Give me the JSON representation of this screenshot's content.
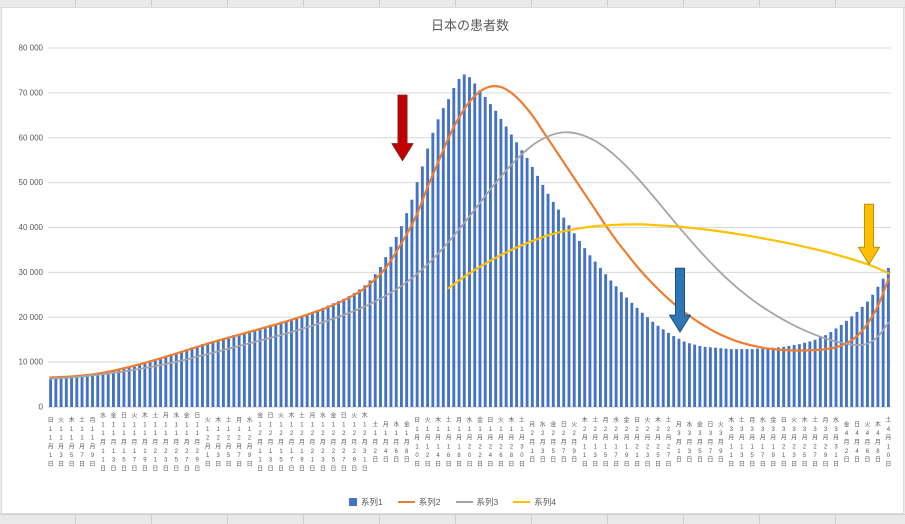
{
  "chart_data": {
    "type": "combo-bar-line",
    "title": "日本の患者数",
    "ylim": [
      0,
      80000
    ],
    "ytick_step": 10000,
    "ytick_labels": [
      "0",
      "10 000",
      "20 000",
      "30 000",
      "40 000",
      "50 000",
      "60 000",
      "70 000",
      "80 000"
    ],
    "grid": true,
    "legend_position": "bottom",
    "days_total": 161,
    "x_label_day_step": 2,
    "x_label_suffix_month": "月",
    "x_label_suffix_day": "日",
    "x_labels": [
      [
        "日",
        "11",
        "1"
      ],
      [
        "火",
        "11",
        "3"
      ],
      [
        "木",
        "11",
        "5"
      ],
      [
        "土",
        "11",
        "7"
      ],
      [
        "月",
        "11",
        "9"
      ],
      [
        "水",
        "11",
        "11"
      ],
      [
        "金",
        "11",
        "13"
      ],
      [
        "日",
        "11",
        "15"
      ],
      [
        "火",
        "11",
        "17"
      ],
      [
        "木",
        "11",
        "19"
      ],
      [
        "土",
        "11",
        "21"
      ],
      [
        "月",
        "11",
        "23"
      ],
      [
        "水",
        "11",
        "25"
      ],
      [
        "金",
        "11",
        "27"
      ],
      [
        "日",
        "11",
        "29"
      ],
      [
        "火",
        "12",
        "1"
      ],
      [
        "木",
        "12",
        "3"
      ],
      [
        "土",
        "12",
        "5"
      ],
      [
        "月",
        "12",
        "7"
      ],
      [
        "水",
        "12",
        "9"
      ],
      [
        "金",
        "12",
        "11"
      ],
      [
        "日",
        "12",
        "13"
      ],
      [
        "火",
        "12",
        "15"
      ],
      [
        "木",
        "12",
        "17"
      ],
      [
        "土",
        "12",
        "19"
      ],
      [
        "月",
        "12",
        "21"
      ],
      [
        "水",
        "12",
        "23"
      ],
      [
        "金",
        "12",
        "25"
      ],
      [
        "日",
        "12",
        "27"
      ],
      [
        "火",
        "12",
        "29"
      ],
      [
        "木",
        "12",
        "31"
      ],
      [
        "土",
        "1",
        "2"
      ],
      [
        "月",
        "1",
        "4"
      ],
      [
        "水",
        "1",
        "6"
      ],
      [
        "金",
        "1",
        "8"
      ],
      [
        "日",
        "1",
        "10"
      ],
      [
        "火",
        "1",
        "12"
      ],
      [
        "木",
        "1",
        "14"
      ],
      [
        "土",
        "1",
        "16"
      ],
      [
        "月",
        "1",
        "18"
      ],
      [
        "水",
        "1",
        "20"
      ],
      [
        "金",
        "1",
        "22"
      ],
      [
        "日",
        "1",
        "24"
      ],
      [
        "火",
        "1",
        "26"
      ],
      [
        "木",
        "1",
        "28"
      ],
      [
        "土",
        "1",
        "30"
      ],
      [
        "月",
        "2",
        "1"
      ],
      [
        "水",
        "2",
        "3"
      ],
      [
        "金",
        "2",
        "5"
      ],
      [
        "日",
        "2",
        "7"
      ],
      [
        "火",
        "2",
        "9"
      ],
      [
        "木",
        "2",
        "11"
      ],
      [
        "土",
        "2",
        "13"
      ],
      [
        "月",
        "2",
        "15"
      ],
      [
        "水",
        "2",
        "17"
      ],
      [
        "金",
        "2",
        "19"
      ],
      [
        "日",
        "2",
        "21"
      ],
      [
        "火",
        "2",
        "23"
      ],
      [
        "木",
        "2",
        "25"
      ],
      [
        "土",
        "2",
        "27"
      ],
      [
        "月",
        "3",
        "1"
      ],
      [
        "水",
        "3",
        "3"
      ],
      [
        "金",
        "3",
        "5"
      ],
      [
        "日",
        "3",
        "7"
      ],
      [
        "火",
        "3",
        "9"
      ],
      [
        "木",
        "3",
        "11"
      ],
      [
        "土",
        "3",
        "13"
      ],
      [
        "月",
        "3",
        "15"
      ],
      [
        "水",
        "3",
        "17"
      ],
      [
        "金",
        "3",
        "19"
      ],
      [
        "日",
        "3",
        "21"
      ],
      [
        "火",
        "3",
        "23"
      ],
      [
        "木",
        "3",
        "25"
      ],
      [
        "土",
        "3",
        "27"
      ],
      [
        "月",
        "3",
        "29"
      ],
      [
        "水",
        "3",
        "31"
      ],
      [
        "金",
        "4",
        "2"
      ],
      [
        "日",
        "4",
        "4"
      ],
      [
        "火",
        "4",
        "6"
      ],
      [
        "木",
        "4",
        "8"
      ],
      [
        "土",
        "4",
        "10"
      ]
    ],
    "bars": {
      "name": "系列1",
      "color": "#4472c4",
      "values": [
        6500,
        6400,
        6700,
        6600,
        6800,
        6900,
        7000,
        7100,
        7300,
        7400,
        7600,
        7900,
        8200,
        8500,
        8800,
        9100,
        9400,
        9700,
        10000,
        10300,
        10700,
        11000,
        11400,
        11800,
        12100,
        12500,
        12900,
        13300,
        13600,
        14000,
        14300,
        14700,
        15000,
        15300,
        15700,
        16000,
        16300,
        16600,
        17000,
        17200,
        17600,
        17900,
        18300,
        18600,
        19000,
        19200,
        19600,
        20000,
        20300,
        20700,
        21100,
        21600,
        22100,
        22600,
        23100,
        23600,
        24100,
        24700,
        25400,
        26200,
        27100,
        28200,
        29600,
        31200,
        33400,
        35700,
        37900,
        40300,
        43200,
        46200,
        50100,
        53600,
        57600,
        61100,
        64100,
        66600,
        68600,
        71100,
        73100,
        74100,
        73500,
        72100,
        70600,
        69100,
        67500,
        66000,
        64200,
        62500,
        60700,
        59000,
        57200,
        55500,
        53500,
        51500,
        49500,
        47500,
        45700,
        44000,
        42200,
        40500,
        38700,
        37000,
        35400,
        33800,
        32400,
        31000,
        29600,
        28200,
        26900,
        25600,
        24400,
        23200,
        22100,
        21000,
        20000,
        19000,
        18100,
        17300,
        16500,
        15800,
        15200,
        14600,
        14200,
        13900,
        13600,
        13400,
        13300,
        13200,
        13100,
        13000,
        12900,
        12900,
        12900,
        12900,
        12900,
        13000,
        13000,
        13100,
        13200,
        13300,
        13400,
        13600,
        13800,
        14000,
        14300,
        14600,
        15000,
        15500,
        16000,
        16700,
        17500,
        18300,
        19200,
        20200,
        21200,
        22300,
        23500,
        25000,
        26800,
        28600,
        31000
      ]
    },
    "lines": [
      {
        "name": "系列2",
        "color": "#ed7d31",
        "width": 2.2,
        "points": [
          [
            0,
            6600
          ],
          [
            4,
            6800
          ],
          [
            8,
            7250
          ],
          [
            12,
            8100
          ],
          [
            16,
            9200
          ],
          [
            20,
            10500
          ],
          [
            24,
            11900
          ],
          [
            28,
            13400
          ],
          [
            32,
            14800
          ],
          [
            36,
            16100
          ],
          [
            40,
            17400
          ],
          [
            44,
            18700
          ],
          [
            48,
            20200
          ],
          [
            52,
            21800
          ],
          [
            56,
            23800
          ],
          [
            60,
            26500
          ],
          [
            64,
            31000
          ],
          [
            68,
            38500
          ],
          [
            70,
            43000
          ],
          [
            72,
            49000
          ],
          [
            74,
            54500
          ],
          [
            76,
            60000
          ],
          [
            78,
            64500
          ],
          [
            80,
            68000
          ],
          [
            82,
            70300
          ],
          [
            84,
            71400
          ],
          [
            86,
            71300
          ],
          [
            88,
            70000
          ],
          [
            90,
            67800
          ],
          [
            92,
            65000
          ],
          [
            94,
            61500
          ],
          [
            96,
            58000
          ],
          [
            98,
            54500
          ],
          [
            100,
            51000
          ],
          [
            102,
            47500
          ],
          [
            104,
            44000
          ],
          [
            106,
            40500
          ],
          [
            108,
            37200
          ],
          [
            110,
            34200
          ],
          [
            112,
            31300
          ],
          [
            114,
            28700
          ],
          [
            116,
            26300
          ],
          [
            118,
            24100
          ],
          [
            120,
            22100
          ],
          [
            122,
            20300
          ],
          [
            124,
            18700
          ],
          [
            126,
            17300
          ],
          [
            128,
            16100
          ],
          [
            130,
            15100
          ],
          [
            132,
            14300
          ],
          [
            134,
            13700
          ],
          [
            136,
            13200
          ],
          [
            138,
            12900
          ],
          [
            140,
            12700
          ],
          [
            142,
            12600
          ],
          [
            144,
            12600
          ],
          [
            146,
            12700
          ],
          [
            148,
            12900
          ],
          [
            150,
            13300
          ],
          [
            152,
            14200
          ],
          [
            154,
            15800
          ],
          [
            156,
            18500
          ],
          [
            158,
            22500
          ],
          [
            160,
            28500
          ]
        ]
      },
      {
        "name": "系列3",
        "color": "#a5a5a5",
        "width": 1.8,
        "points": [
          [
            0,
            6300
          ],
          [
            6,
            6800
          ],
          [
            12,
            7600
          ],
          [
            18,
            8700
          ],
          [
            24,
            10100
          ],
          [
            30,
            11800
          ],
          [
            36,
            13600
          ],
          [
            42,
            15400
          ],
          [
            48,
            17400
          ],
          [
            54,
            19700
          ],
          [
            60,
            22400
          ],
          [
            64,
            24800
          ],
          [
            68,
            27800
          ],
          [
            72,
            31800
          ],
          [
            76,
            36800
          ],
          [
            80,
            42500
          ],
          [
            84,
            48500
          ],
          [
            88,
            54000
          ],
          [
            92,
            58300
          ],
          [
            95,
            60300
          ],
          [
            98,
            61200
          ],
          [
            101,
            60800
          ],
          [
            104,
            59300
          ],
          [
            107,
            56800
          ],
          [
            110,
            53600
          ],
          [
            113,
            49800
          ],
          [
            116,
            45700
          ],
          [
            119,
            41500
          ],
          [
            122,
            37400
          ],
          [
            125,
            33500
          ],
          [
            128,
            29900
          ],
          [
            131,
            26700
          ],
          [
            134,
            23900
          ],
          [
            137,
            21500
          ],
          [
            140,
            19400
          ],
          [
            143,
            17600
          ],
          [
            146,
            16100
          ],
          [
            149,
            14900
          ],
          [
            152,
            14100
          ],
          [
            154,
            13800
          ],
          [
            156,
            14100
          ],
          [
            158,
            15700
          ],
          [
            160,
            18800
          ]
        ]
      },
      {
        "name": "系列4",
        "color": "#ffc000",
        "width": 2.2,
        "points": [
          [
            76,
            26500
          ],
          [
            80,
            29800
          ],
          [
            84,
            32600
          ],
          [
            88,
            35000
          ],
          [
            92,
            37000
          ],
          [
            96,
            38600
          ],
          [
            100,
            39600
          ],
          [
            104,
            40300
          ],
          [
            108,
            40600
          ],
          [
            112,
            40700
          ],
          [
            116,
            40500
          ],
          [
            120,
            40200
          ],
          [
            124,
            39700
          ],
          [
            128,
            39100
          ],
          [
            132,
            38400
          ],
          [
            136,
            37600
          ],
          [
            140,
            36700
          ],
          [
            144,
            35700
          ],
          [
            148,
            34600
          ],
          [
            152,
            33300
          ],
          [
            155,
            32200
          ],
          [
            157,
            31400
          ],
          [
            159,
            30400
          ],
          [
            160,
            29800
          ]
        ]
      }
    ],
    "arrows": [
      {
        "name": "red-down-arrow",
        "color": "#c00000",
        "edge": "#8f1d1d",
        "day": 67.2,
        "from": 69500,
        "to": 54900
      },
      {
        "name": "blue-down-arrow",
        "color": "#2e75b6",
        "edge": "#1f4e79",
        "day": 120.2,
        "from": 30900,
        "to": 16700
      },
      {
        "name": "yellow-down-arrow",
        "color": "#ffc000",
        "edge": "#bf9000",
        "day": 156.3,
        "from": 45200,
        "to": 31800
      }
    ],
    "legend": [
      {
        "label": "系列1",
        "type": "bar",
        "color": "#4472c4"
      },
      {
        "label": "系列2",
        "type": "line",
        "color": "#ed7d31"
      },
      {
        "label": "系列3",
        "type": "line",
        "color": "#a5a5a5"
      },
      {
        "label": "系列4",
        "type": "line",
        "color": "#ffc000"
      }
    ]
  }
}
